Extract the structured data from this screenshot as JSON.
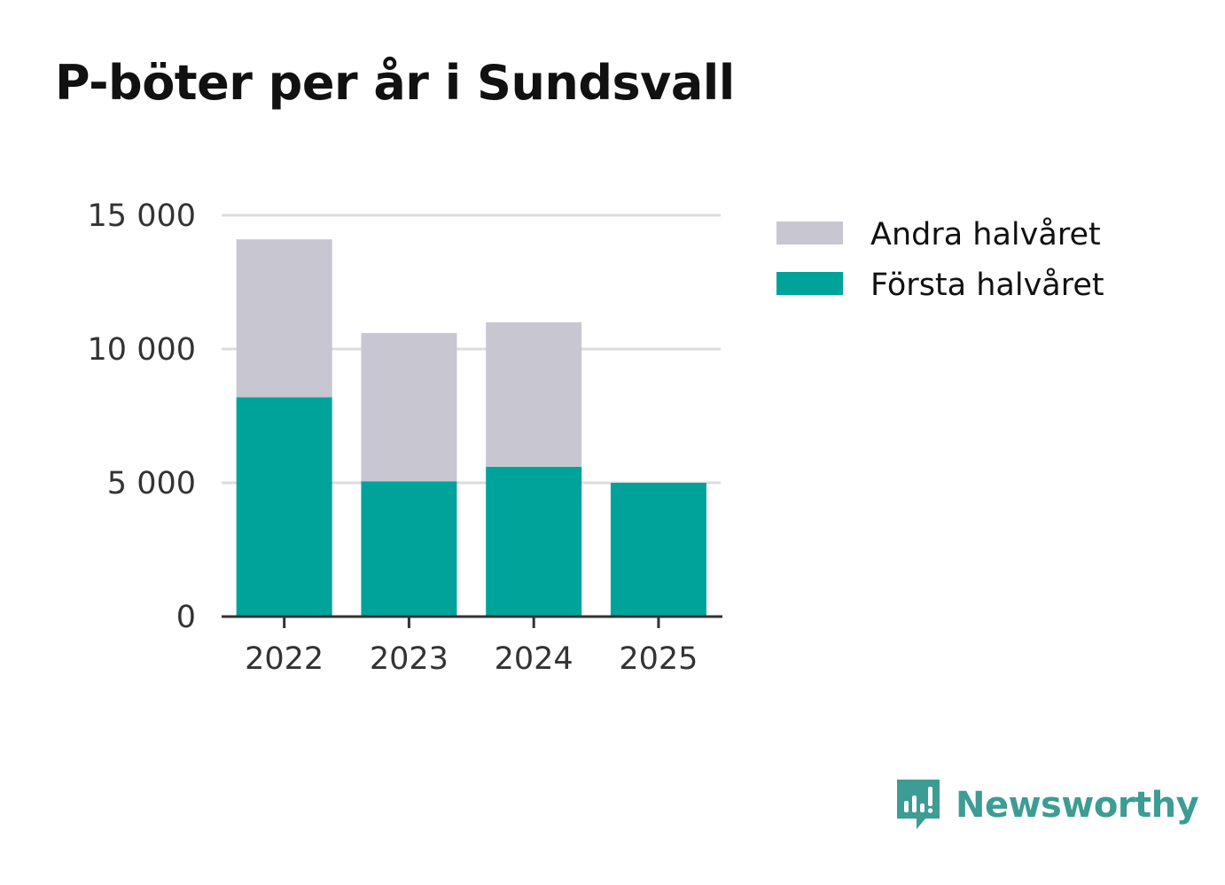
{
  "chart_data": {
    "type": "bar",
    "stacked": true,
    "title": "P-böter per år i Sundsvall",
    "categories": [
      "2022",
      "2023",
      "2024",
      "2025"
    ],
    "series": [
      {
        "name": "Första halvåret",
        "color": "#00a39a",
        "values": [
          8200,
          5050,
          5600,
          5000
        ]
      },
      {
        "name": "Andra halvåret",
        "color": "#c8c6d1",
        "values": [
          5900,
          5550,
          5400,
          0
        ]
      }
    ],
    "legend_order": [
      "Andra halvåret",
      "Första halvåret"
    ],
    "yticks": [
      0,
      5000,
      10000,
      15000
    ],
    "ytick_labels": [
      "0",
      "5 000",
      "10 000",
      "15 000"
    ],
    "ylim": [
      0,
      15000
    ],
    "xlabel": "",
    "ylabel": "",
    "grid": true,
    "legend_position": "right"
  },
  "brand": {
    "name": "Newsworthy",
    "color": "#3d9c93",
    "icon": "newsworthy-logo-icon"
  }
}
